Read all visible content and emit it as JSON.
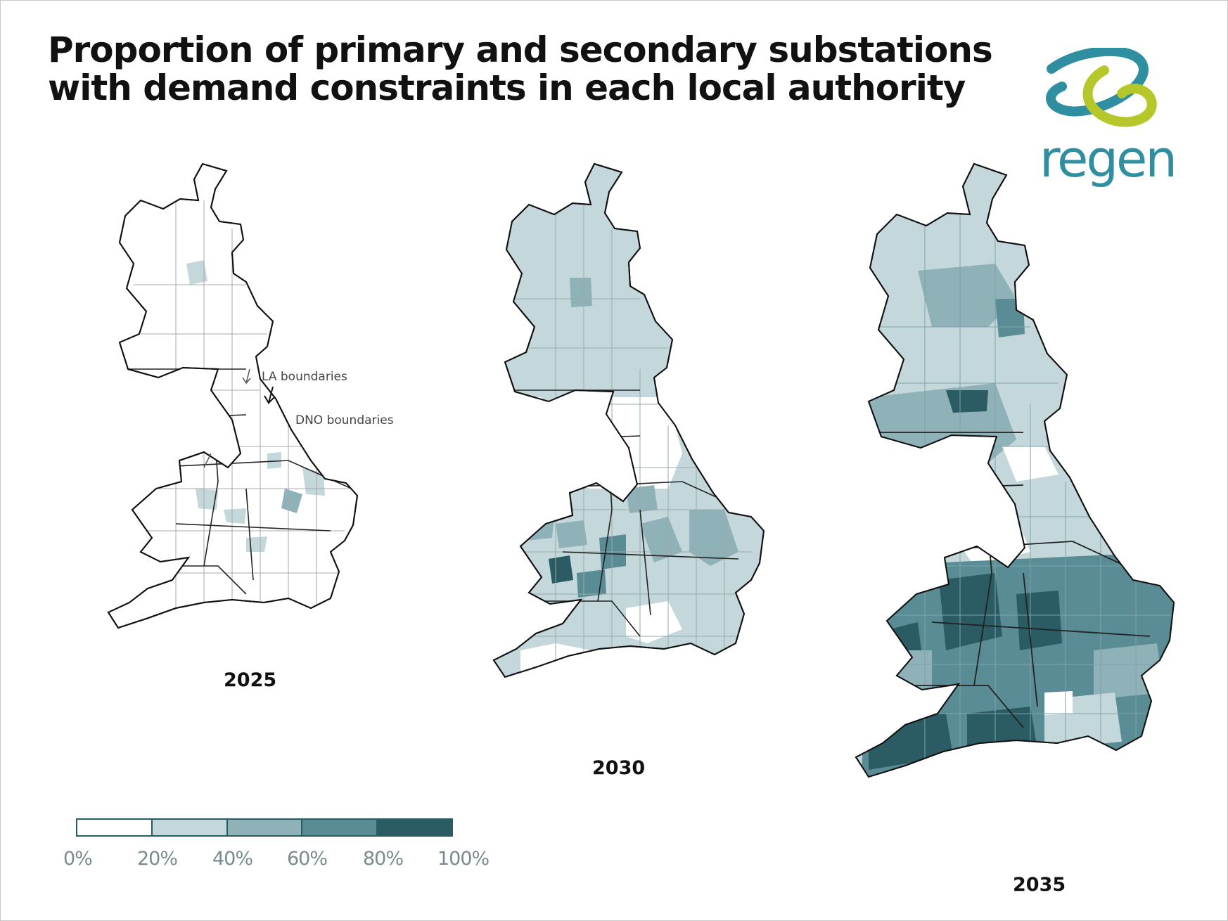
{
  "title": {
    "line1": "Proportion of primary and secondary substations",
    "line2": "with demand constraints in each local authority"
  },
  "brand": {
    "name": "regen",
    "colors": {
      "teal": "#2f8ea0",
      "lime": "#b5c72a"
    }
  },
  "maps": [
    {
      "year": "2025"
    },
    {
      "year": "2030"
    },
    {
      "year": "2035"
    }
  ],
  "annotations": {
    "la_boundaries": "LA boundaries",
    "dno_boundaries": "DNO boundaries"
  },
  "legend": {
    "bins": [
      {
        "range": "0-20%",
        "color": "#ffffff"
      },
      {
        "range": "20-40%",
        "color": "#c4d8dc"
      },
      {
        "range": "40-60%",
        "color": "#8fb2b9"
      },
      {
        "range": "60-80%",
        "color": "#5a8c95"
      },
      {
        "range": "80-100%",
        "color": "#2b5b63"
      }
    ],
    "ticks": [
      "0%",
      "20%",
      "40%",
      "60%",
      "80%",
      "100%"
    ]
  }
}
